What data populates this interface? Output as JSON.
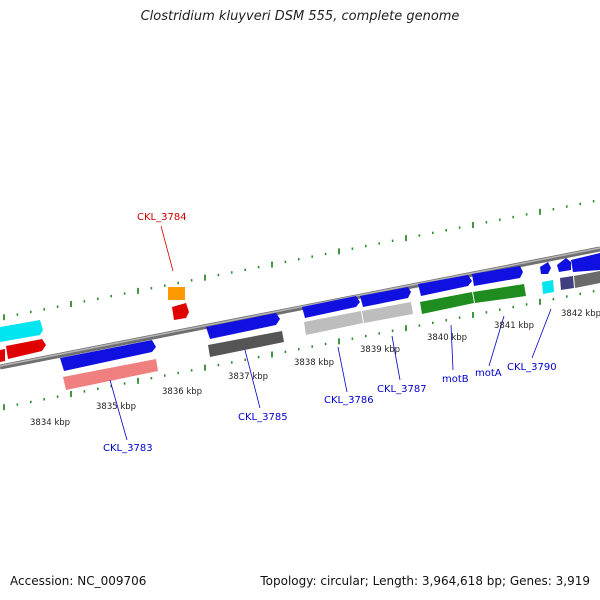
{
  "title": "Clostridium kluyveri DSM 555, complete genome",
  "footer": {
    "accession": "Accession: NC_009706",
    "summary": "Topology: circular; Length: 3,964,618 bp; Genes: 3,919"
  },
  "colors": {
    "backbone": "#8c8c8c",
    "ticks": "#2e8b2e",
    "label_blue": "#0000cc",
    "label_red": "#cc0000"
  },
  "kbp_labels": [
    "3834 kbp",
    "3835 kbp",
    "3836 kbp",
    "3837 kbp",
    "3838 kbp",
    "3839 kbp",
    "3840 kbp",
    "3841 kbp",
    "3842 kbp"
  ],
  "gene_labels": [
    {
      "name": "CKL_3784",
      "color": "red"
    },
    {
      "name": "CKL_3783",
      "color": "blue"
    },
    {
      "name": "CKL_3785",
      "color": "blue"
    },
    {
      "name": "CKL_3786",
      "color": "blue"
    },
    {
      "name": "CKL_3787",
      "color": "blue"
    },
    {
      "name": "motB",
      "color": "blue"
    },
    {
      "name": "motA",
      "color": "blue"
    },
    {
      "name": "CKL_3790",
      "color": "blue"
    }
  ]
}
